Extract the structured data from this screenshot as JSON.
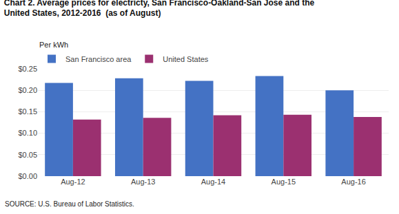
{
  "chart_data": {
    "type": "bar",
    "title": "Chart 2. Average prices for electricty, San Francisco-Oakland-San Jose and the",
    "subtitle": "United States, 2012-2016  (as of August)",
    "ylabel": "Per kWh",
    "annotations": [
      "SOURCE: U.S. Bureau of Labor Statistics."
    ],
    "categories": [
      "Aug-12",
      "Aug-13",
      "Aug-14",
      "Aug-15",
      "Aug-16"
    ],
    "series": [
      {
        "name": "San Francisco area",
        "color": "#4472C4",
        "values": [
          0.217,
          0.228,
          0.222,
          0.233,
          0.2
        ]
      },
      {
        "name": "United States",
        "color": "#9B3070",
        "values": [
          0.132,
          0.136,
          0.142,
          0.143,
          0.138
        ]
      }
    ],
    "ylim": [
      0.0,
      0.25
    ],
    "yticks": [
      {
        "value": 0.0,
        "label": "$0.00"
      },
      {
        "value": 0.05,
        "label": "$0.05"
      },
      {
        "value": 0.1,
        "label": "$0.10"
      },
      {
        "value": 0.15,
        "label": "$0.15"
      },
      {
        "value": 0.2,
        "label": "$0.20"
      },
      {
        "value": 0.25,
        "label": "$0.25"
      }
    ],
    "grid": true,
    "legend": "top-left"
  }
}
